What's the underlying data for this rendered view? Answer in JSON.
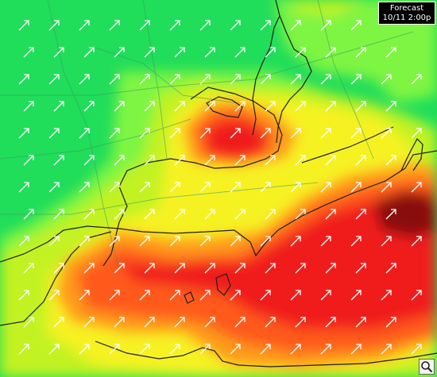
{
  "forecast_label": {
    "title": "Forecast",
    "datetime": "10/11  2:00p"
  },
  "colors": {
    "calm_green": "#20dd5a",
    "light_green": "#7ef542",
    "lime": "#c2f222",
    "yellow": "#f6f224",
    "orange": "#ff9a1e",
    "red_orange": "#ff5a1e",
    "red": "#f01a1a",
    "dark_red": "#8a0a0a",
    "arrow": "#ffffff",
    "coastline": "#1e1e1e",
    "roads": "#3a9a60"
  },
  "map": {
    "layer": "wind speed and direction",
    "arrow_direction": "northeast"
  },
  "zoom_control": {
    "icon": "magnifier-icon"
  }
}
